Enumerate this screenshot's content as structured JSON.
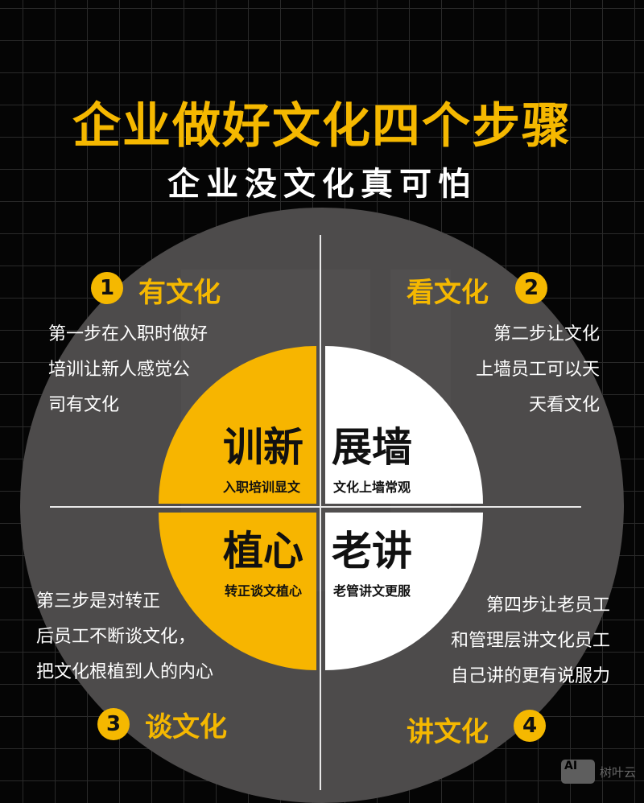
{
  "title": "企业做好文化四个步骤",
  "subtitle": "企业没文化真可怕",
  "colors": {
    "accent": "#f5b800",
    "background": "#050505",
    "circle": "#4d4b4b"
  },
  "quadrants": [
    {
      "title": "训新",
      "sub": "入职培训显文"
    },
    {
      "title": "展墙",
      "sub": "文化上墙常观"
    },
    {
      "title": "植心",
      "sub": "转正谈文植心"
    },
    {
      "title": "老讲",
      "sub": "老管讲文更服"
    }
  ],
  "steps": [
    {
      "num": "1",
      "heading": "有文化",
      "lines": [
        "第一步在入职时做好",
        "培训让新人感觉公",
        "司有文化"
      ]
    },
    {
      "num": "2",
      "heading": "看文化",
      "lines": [
        "第二步让文化",
        "上墙员工可以天",
        "天看文化"
      ]
    },
    {
      "num": "3",
      "heading": "谈文化",
      "lines": [
        "第三步是对转正",
        "后员工不断谈文化，",
        "把文化根植到人的内心"
      ]
    },
    {
      "num": "4",
      "heading": "讲文化",
      "lines": [
        "第四步让老员工",
        "和管理层讲文化员工",
        "自己讲的更有说服力"
      ]
    }
  ],
  "watermark": {
    "icon_text": "AI",
    "label": "树叶云"
  }
}
